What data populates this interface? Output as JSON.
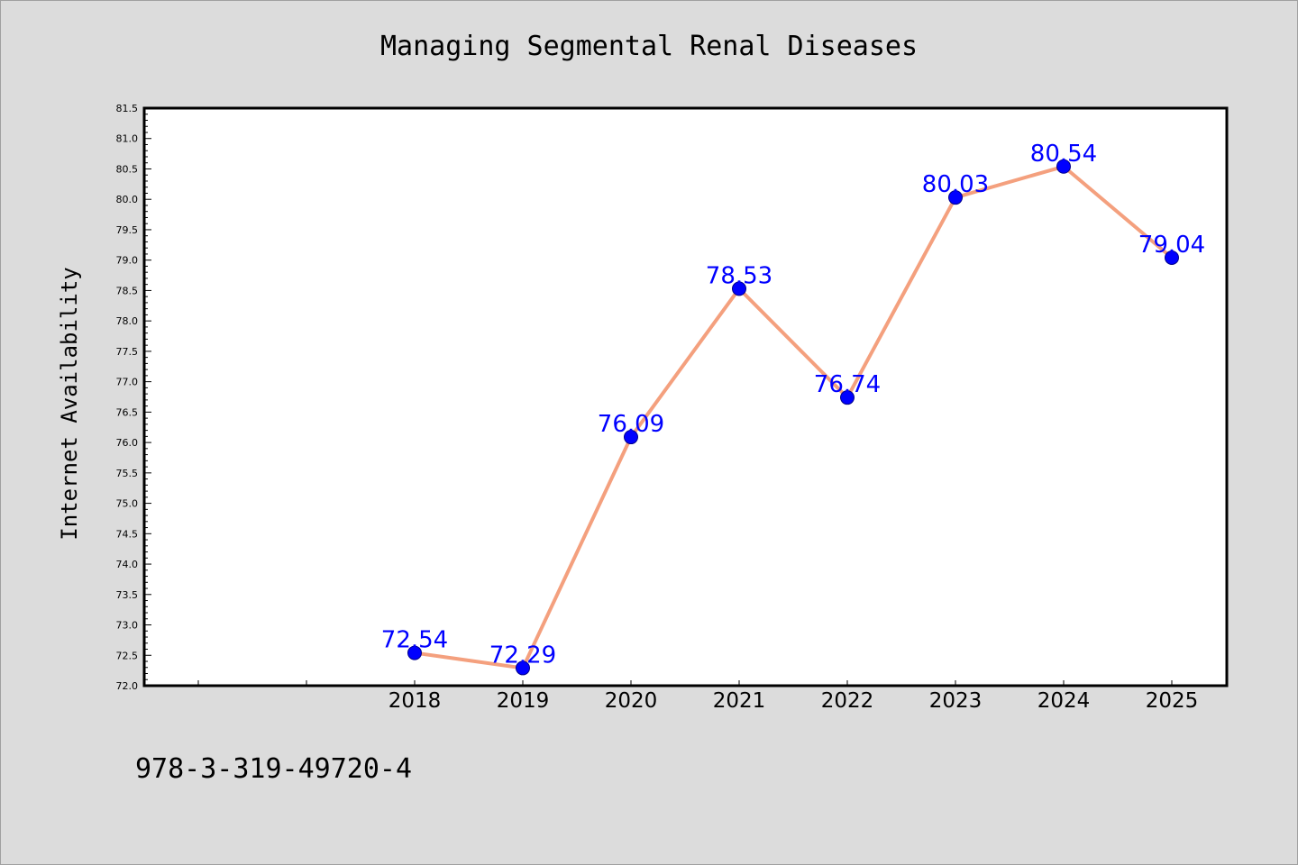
{
  "chart_data": {
    "type": "line",
    "title": "Managing Segmental Renal Diseases",
    "ylabel": "Internet Availability",
    "xlabel": "",
    "x": [
      "2018",
      "2019",
      "2020",
      "2021",
      "2022",
      "2023",
      "2024",
      "2025"
    ],
    "series": [
      {
        "values": [
          72.54,
          72.29,
          76.09,
          78.53,
          76.74,
          80.03,
          80.54,
          79.04
        ],
        "labels": [
          "72.54",
          "72.29",
          "76.09",
          "78.53",
          "76.74",
          "80.03",
          "80.54",
          "79.04"
        ]
      }
    ],
    "ylim": [
      72.0,
      81.5
    ],
    "yticks": [
      "72.0",
      "72.5",
      "73.0",
      "73.5",
      "74.0",
      "74.5",
      "75.0",
      "75.5",
      "76.0",
      "76.5",
      "77.0",
      "77.5",
      "78.0",
      "78.5",
      "79.0",
      "79.5",
      "80.0",
      "80.5",
      "81.0",
      "81.5"
    ],
    "grid": false,
    "colors": {
      "line": "#f4a07e",
      "marker": "#0000ff",
      "marker_edge": "#00008b",
      "data_label": "#0000ff",
      "plot_background": "#ffffff",
      "figure_background": "#dcdcdc"
    }
  },
  "footer": {
    "text": "978-3-319-49720-4"
  }
}
